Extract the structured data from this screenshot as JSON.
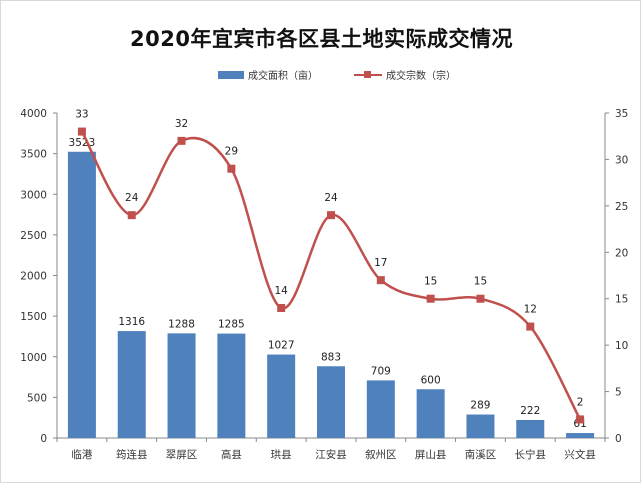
{
  "chart_data": {
    "type": "bar+line",
    "title": "2020年宜宾市各区县土地实际成交情况",
    "categories": [
      "临港",
      "筠连县",
      "翠屏区",
      "高县",
      "珙县",
      "江安县",
      "叙州区",
      "屏山县",
      "南溪区",
      "长宁县",
      "兴文县"
    ],
    "series": [
      {
        "name": "成交面积（亩）",
        "type": "bar",
        "axis": "left",
        "color": "#4f81bd",
        "values": [
          3523,
          1316,
          1288,
          1285,
          1027,
          883,
          709,
          600,
          289,
          222,
          61
        ],
        "labels": [
          "3523",
          "1316",
          "1288",
          "1285",
          "1027",
          "883",
          "709",
          "600",
          "289",
          "222",
          "61"
        ]
      },
      {
        "name": "成交宗数（宗）",
        "type": "line",
        "axis": "right",
        "color": "#c0504d",
        "values": [
          33,
          24,
          32,
          29,
          14,
          24,
          17,
          15,
          15,
          12,
          2
        ],
        "labels": [
          "33",
          "24",
          "32",
          "29",
          "14",
          "24",
          "17",
          "15",
          "15",
          "12",
          "2"
        ]
      }
    ],
    "left_axis": {
      "min": 0,
      "max": 4000,
      "step": 500,
      "ticks": [
        "0",
        "500",
        "1000",
        "1500",
        "2000",
        "2500",
        "3000",
        "3500",
        "4000"
      ]
    },
    "right_axis": {
      "min": 0,
      "max": 35,
      "step": 5,
      "ticks": [
        "0",
        "5",
        "10",
        "15",
        "20",
        "25",
        "30",
        "35"
      ]
    },
    "legend_position": "top-center",
    "grid": false
  }
}
